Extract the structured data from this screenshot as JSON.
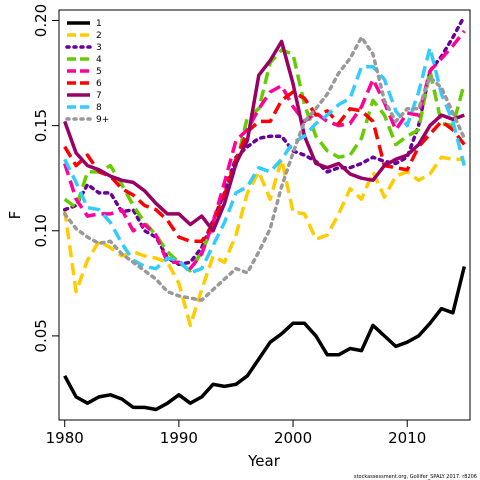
{
  "chart_data": {
    "type": "line",
    "xlabel": "Year",
    "ylabel": "F",
    "xlim": [
      1979.5,
      2015.5
    ],
    "ylim": [
      0.01,
      0.205
    ],
    "x_ticks": [
      1980,
      1990,
      2000,
      2010
    ],
    "y_ticks": [
      0.05,
      0.1,
      0.15,
      0.2
    ],
    "x": [
      1980,
      1981,
      1982,
      1983,
      1984,
      1985,
      1986,
      1987,
      1988,
      1989,
      1990,
      1991,
      1992,
      1993,
      1994,
      1995,
      1996,
      1997,
      1998,
      1999,
      2000,
      2001,
      2002,
      2003,
      2004,
      2005,
      2006,
      2007,
      2008,
      2009,
      2010,
      2011,
      2012,
      2013,
      2014,
      2015
    ],
    "legend_position": "top-left",
    "grid": false,
    "series": [
      {
        "name": "1",
        "color": "#000000",
        "dash": "solid",
        "values": [
          0.031,
          0.021,
          0.018,
          0.021,
          0.022,
          0.02,
          0.016,
          0.016,
          0.015,
          0.018,
          0.022,
          0.018,
          0.021,
          0.027,
          0.026,
          0.027,
          0.031,
          0.039,
          0.047,
          0.051,
          0.056,
          0.056,
          0.05,
          0.041,
          0.041,
          0.044,
          0.043,
          0.055,
          0.05,
          0.045,
          0.047,
          0.05,
          0.056,
          0.063,
          0.061,
          0.083
        ]
      },
      {
        "name": "2",
        "color": "#FFCC00",
        "dash": "long",
        "values": [
          0.11,
          0.071,
          0.086,
          0.095,
          0.092,
          0.088,
          0.09,
          0.088,
          0.087,
          0.085,
          0.075,
          0.055,
          0.072,
          0.088,
          0.085,
          0.098,
          0.118,
          0.128,
          0.115,
          0.134,
          0.109,
          0.108,
          0.096,
          0.098,
          0.108,
          0.12,
          0.115,
          0.128,
          0.116,
          0.126,
          0.128,
          0.124,
          0.127,
          0.135,
          0.134,
          0.134
        ]
      },
      {
        "name": "3",
        "color": "#660099",
        "dash": "dot",
        "values": [
          0.11,
          0.112,
          0.122,
          0.118,
          0.118,
          0.109,
          0.11,
          0.1,
          0.097,
          0.087,
          0.084,
          0.085,
          0.092,
          0.105,
          0.118,
          0.135,
          0.14,
          0.144,
          0.145,
          0.145,
          0.138,
          0.136,
          0.133,
          0.128,
          0.13,
          0.13,
          0.132,
          0.135,
          0.133,
          0.132,
          0.135,
          0.15,
          0.176,
          0.183,
          0.192,
          0.202
        ]
      },
      {
        "name": "4",
        "color": "#66CC00",
        "dash": "long",
        "values": [
          0.115,
          0.111,
          0.128,
          0.128,
          0.131,
          0.122,
          0.112,
          0.104,
          0.098,
          0.09,
          0.085,
          0.081,
          0.09,
          0.102,
          0.115,
          0.131,
          0.154,
          0.158,
          0.18,
          0.186,
          0.184,
          0.16,
          0.145,
          0.138,
          0.135,
          0.136,
          0.144,
          0.162,
          0.155,
          0.141,
          0.145,
          0.148,
          0.176,
          0.151,
          0.15,
          0.17
        ]
      },
      {
        "name": "5",
        "color": "#FF0099",
        "dash": "long",
        "values": [
          0.132,
          0.115,
          0.107,
          0.108,
          0.108,
          0.11,
          0.1,
          0.103,
          0.098,
          0.085,
          0.085,
          0.082,
          0.089,
          0.104,
          0.123,
          0.143,
          0.148,
          0.158,
          0.166,
          0.169,
          0.159,
          0.152,
          0.156,
          0.152,
          0.15,
          0.151,
          0.159,
          0.172,
          0.161,
          0.148,
          0.156,
          0.155,
          0.176,
          0.182,
          0.188,
          0.195
        ]
      },
      {
        "name": "6",
        "color": "#FF0000",
        "dash": "long",
        "values": [
          0.14,
          0.131,
          0.136,
          0.128,
          0.126,
          0.12,
          0.117,
          0.112,
          0.11,
          0.105,
          0.097,
          0.095,
          0.095,
          0.103,
          0.117,
          0.134,
          0.147,
          0.152,
          0.152,
          0.162,
          0.166,
          0.163,
          0.155,
          0.157,
          0.151,
          0.158,
          0.157,
          0.152,
          0.131,
          0.13,
          0.129,
          0.14,
          0.146,
          0.152,
          0.148,
          0.141
        ]
      },
      {
        "name": "7",
        "color": "#990066",
        "dash": "solid",
        "values": [
          0.152,
          0.137,
          0.131,
          0.129,
          0.126,
          0.124,
          0.123,
          0.119,
          0.113,
          0.108,
          0.108,
          0.103,
          0.107,
          0.1,
          0.113,
          0.132,
          0.143,
          0.174,
          0.181,
          0.19,
          0.17,
          0.145,
          0.132,
          0.13,
          0.132,
          0.127,
          0.125,
          0.124,
          0.131,
          0.134,
          0.136,
          0.141,
          0.15,
          0.155,
          0.153,
          0.155
        ]
      },
      {
        "name": "8",
        "color": "#33CCFF",
        "dash": "long",
        "values": [
          0.134,
          0.123,
          0.111,
          0.11,
          0.104,
          0.094,
          0.086,
          0.083,
          0.082,
          0.087,
          0.086,
          0.08,
          0.082,
          0.093,
          0.104,
          0.118,
          0.121,
          0.13,
          0.128,
          0.134,
          0.142,
          0.145,
          0.151,
          0.155,
          0.16,
          0.163,
          0.178,
          0.178,
          0.172,
          0.157,
          0.15,
          0.166,
          0.187,
          0.165,
          0.152,
          0.131
        ]
      },
      {
        "name": "9+",
        "color": "#999999",
        "dash": "dot",
        "values": [
          0.108,
          0.101,
          0.097,
          0.094,
          0.095,
          0.089,
          0.085,
          0.081,
          0.077,
          0.071,
          0.069,
          0.068,
          0.067,
          0.072,
          0.077,
          0.082,
          0.08,
          0.09,
          0.101,
          0.121,
          0.137,
          0.152,
          0.158,
          0.165,
          0.175,
          0.182,
          0.192,
          0.184,
          0.162,
          0.152,
          0.158,
          0.158,
          0.173,
          0.168,
          0.156,
          0.144
        ]
      }
    ]
  },
  "credit_text": "stockassessment.org, Gollifer_SPALY 2017. r8206"
}
